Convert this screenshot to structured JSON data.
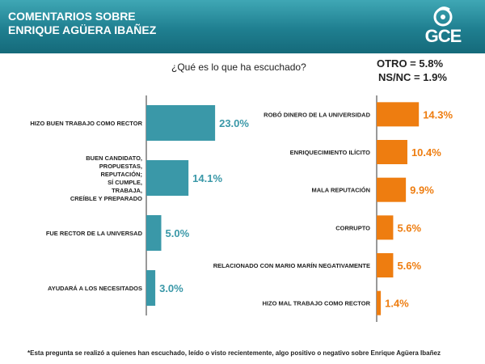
{
  "header": {
    "title_line1": "COMENTARIOS  SOBRE",
    "title_line2": "ENRIQUE AGÜERA IBAÑEZ",
    "logo_text": "GCE"
  },
  "question": "¿Qué es lo que ha escuchado?",
  "extra": {
    "otro": "OTRO = 5.8%",
    "nsnc": "NS/NC = 1.9%"
  },
  "footnote": "*Esta pregunta se realizó a quienes han escuchado, leído o visto recientemente, algo positivo o negativo sobre Enrique Agüera Ibañez",
  "colors": {
    "positive": "#3a98a8",
    "negative": "#ee7d10",
    "header_dark": "#156a7a",
    "axis": "#333333"
  },
  "chart_data": [
    {
      "type": "bar",
      "orientation": "horizontal",
      "name": "",
      "categories": [
        [
          "HIZO BUEN TRABAJO COMO RECTOR"
        ],
        [
          "BUEN CANDIDATO,",
          "PROPUESTAS,",
          "REPUTACIÓN;",
          "SÍ CUMPLE,",
          "TRABAJA,",
          "CREÍBLE Y PREPARADO"
        ],
        [
          "FUE RECTOR DE LA UNIVERSAD"
        ],
        [
          "AYUDARÁ A LOS NECESITADOS"
        ]
      ],
      "values": [
        23.0,
        14.1,
        5.0,
        3.0
      ],
      "labels": [
        "23.0%",
        "14.1%",
        "5.0%",
        "3.0%"
      ],
      "xlim": [
        0,
        25
      ]
    },
    {
      "type": "bar",
      "orientation": "horizontal",
      "name": "",
      "categories": [
        [
          "ROBÓ DINERO DE LA UNIVERSIDAD"
        ],
        [
          "ENRIQUECIMIENTO ILÍCITO"
        ],
        [
          "MALA REPUTACIÓN"
        ],
        [
          "CORRUPTO"
        ],
        [
          "RELACIONADO CON MARIO MARÍN NEGATIVAMENTE"
        ],
        [
          "HIZO MAL TRABAJO COMO RECTOR"
        ]
      ],
      "values": [
        14.3,
        10.4,
        9.9,
        5.6,
        5.6,
        1.4
      ],
      "labels": [
        "14.3%",
        "10.4%",
        "9.9%",
        "5.6%",
        "5.6%",
        "1.4%"
      ],
      "xlim": [
        0,
        25
      ]
    }
  ]
}
